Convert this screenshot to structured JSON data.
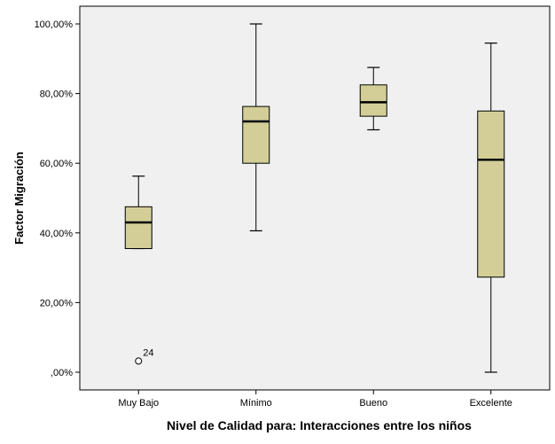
{
  "chart_data": {
    "type": "boxplot",
    "title": "",
    "xlabel": "Nivel de Calidad para: Interacciones entre los niños",
    "ylabel": "Factor Migración",
    "ylim": [
      0,
      100
    ],
    "y_ticks": [
      0,
      20,
      40,
      60,
      80,
      100
    ],
    "y_tick_labels": [
      ",00%",
      "20,00%",
      "40,00%",
      "60,00%",
      "80,00%",
      "100,00%"
    ],
    "categories": [
      "Muy Bajo",
      "Mínimo",
      "Bueno",
      "Excelente"
    ],
    "boxes": [
      {
        "category": "Muy Bajo",
        "min": 35.5,
        "q1": 35.5,
        "median": 43,
        "q3": 47.5,
        "max": 56.3,
        "outliers": [
          {
            "value": 3.2,
            "label": "24"
          }
        ]
      },
      {
        "category": "Mínimo",
        "min": 40.6,
        "q1": 60,
        "median": 72,
        "q3": 76.3,
        "max": 100,
        "outliers": []
      },
      {
        "category": "Bueno",
        "min": 69.6,
        "q1": 73.5,
        "median": 77.5,
        "q3": 82.5,
        "max": 87.5,
        "outliers": []
      },
      {
        "category": "Excelente",
        "min": 0,
        "q1": 27.3,
        "median": 61,
        "q3": 75,
        "max": 94.5,
        "outliers": []
      }
    ],
    "grid": false,
    "legend": "none",
    "colors": {
      "plot_background": "#f0f0f0",
      "box_fill": "#d3ce97",
      "line": "#000000"
    }
  }
}
